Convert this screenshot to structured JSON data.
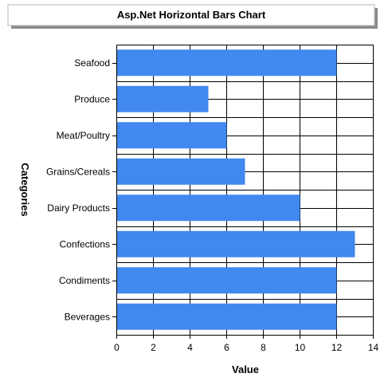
{
  "chart_data": {
    "type": "bar",
    "orientation": "horizontal",
    "title": "Asp.Net Horizontal Bars Chart",
    "xlabel": "Value",
    "ylabel": "Categories",
    "categories": [
      "Beverages",
      "Condiments",
      "Confections",
      "Dairy Products",
      "Grains/Cereals",
      "Meat/Poultry",
      "Produce",
      "Seafood"
    ],
    "values": [
      12,
      12,
      13,
      10,
      7,
      6,
      5,
      12
    ],
    "xlim": [
      0,
      14
    ],
    "xticks": [
      "0",
      "2",
      "4",
      "6",
      "8",
      "10",
      "12",
      "14"
    ],
    "grid": true,
    "legend": "none",
    "bar_color": "#4289ef",
    "grid_color": "#000000"
  }
}
